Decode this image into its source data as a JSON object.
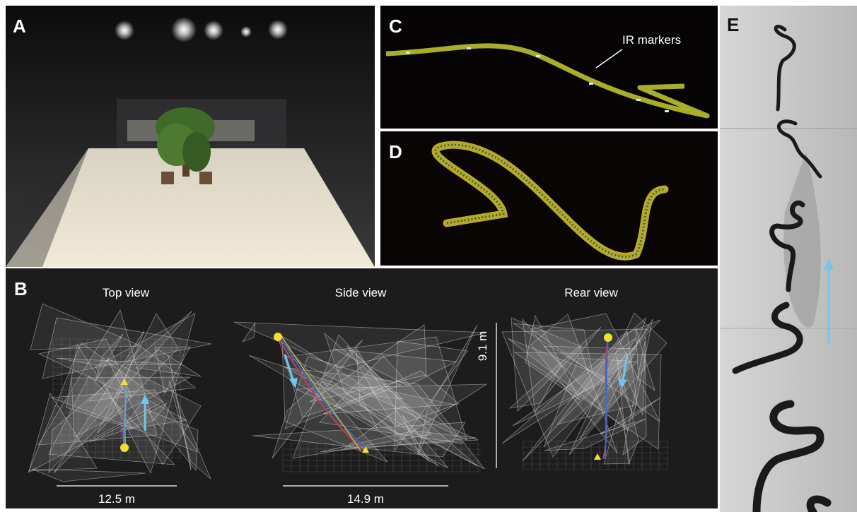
{
  "panels": {
    "a": {
      "label": "A"
    },
    "b": {
      "label": "B",
      "views": [
        {
          "title": "Top view",
          "scale": "12.5 m"
        },
        {
          "title": "Side view",
          "scale": "14.9 m"
        },
        {
          "title": "Rear view",
          "scale": "9.1 m"
        }
      ]
    },
    "c": {
      "label": "C",
      "annotation": "IR markers"
    },
    "d": {
      "label": "D"
    },
    "e": {
      "label": "E"
    }
  }
}
